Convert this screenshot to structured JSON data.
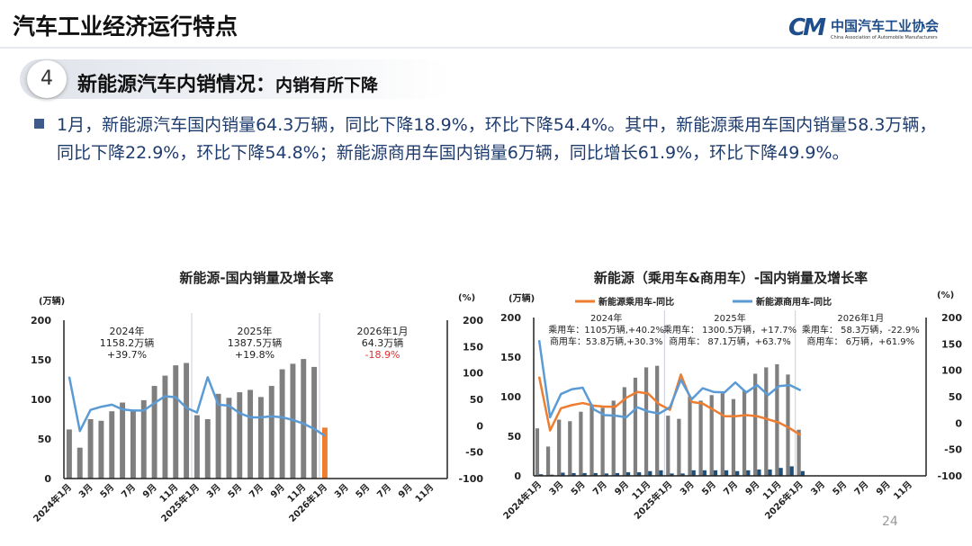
{
  "header": {
    "title": "汽车工业经济运行特点",
    "logo_mark": "CM",
    "logo_cn": "中国汽车工业协会",
    "logo_en": "China Association of Automobile Manufacturers"
  },
  "section": {
    "number": "4",
    "heading": "新能源汽车内销情况：",
    "subheading": "内销有所下降"
  },
  "bullet": "1月，新能源汽车国内销量64.3万辆，同比下降18.9%，环比下降54.4%。其中，新能源乘用车国内销量58.3万辆，同比下降22.9%，环比下降54.8%；新能源商用车国内销量6万辆，同比增长61.9%，环比下降49.9%。",
  "page_number": "24",
  "colors": {
    "bar": "#7f7f7f",
    "bar_highlight": "#ed7d31",
    "line_blue": "#5b9bd5",
    "line_orange": "#ed7d31",
    "commercial_bar": "#1f4e79",
    "negative": "#e03030"
  },
  "chart_data": [
    {
      "type": "bar+line",
      "title": "新能源-国内销量及增长率",
      "ylabel_left": "(万辆)",
      "ylabel_right": "(%)",
      "ylim_left": [
        0,
        200
      ],
      "ylim_right": [
        -100,
        200
      ],
      "yticks_left": [
        "0",
        "50",
        "100",
        "150",
        "200"
      ],
      "yticks_right": [
        "-100",
        "-50",
        "0",
        "50",
        "100",
        "150",
        "200"
      ],
      "xticks": [
        "2024年1月",
        "3月",
        "5月",
        "7月",
        "9月",
        "11月",
        "2025年1月",
        "3月",
        "5月",
        "7月",
        "9月",
        "11月",
        "2026年1月",
        "3月",
        "5月",
        "7月",
        "9月",
        "11月"
      ],
      "bar_series": [
        {
          "values": [
            62,
            39,
            75,
            73,
            85,
            96,
            87,
            99,
            117,
            130,
            143,
            146,
            80,
            75,
            107,
            102,
            109,
            112,
            103,
            117,
            138,
            145,
            151,
            141,
            64.3
          ],
          "highlight_last": true
        }
      ],
      "line_series": [
        {
          "color": "#5b9bd5",
          "values": [
            93,
            -10,
            30,
            36,
            40,
            31,
            29,
            29,
            43,
            56,
            54,
            34,
            25,
            92,
            40,
            38,
            24,
            16,
            16,
            18,
            16,
            11,
            4,
            -6,
            -18.9
          ]
        }
      ],
      "annotations": [
        {
          "lines": [
            "2024年",
            "1158.2万辆",
            "+39.7%"
          ]
        },
        {
          "lines": [
            "2025年",
            "1387.5万辆",
            "+19.8%"
          ]
        },
        {
          "lines": [
            "2026年1月",
            "64.3万辆",
            "-18.9%"
          ],
          "negative_last": true
        }
      ]
    },
    {
      "type": "bar+line",
      "title": "新能源（乘用车&商用车）-国内销量及增长率",
      "ylabel_left": "(万辆)",
      "ylabel_right": "(%)",
      "ylim_left": [
        0,
        200
      ],
      "ylim_right": [
        -100,
        200
      ],
      "yticks_left": [
        "0",
        "50",
        "100",
        "150",
        "200"
      ],
      "yticks_right": [
        "-100",
        "-50",
        "0",
        "50",
        "100",
        "150",
        "200"
      ],
      "xticks": [
        "2024年1月",
        "3月",
        "5月",
        "7月",
        "9月",
        "11月",
        "2025年1月",
        "3月",
        "5月",
        "7月",
        "9月",
        "11月",
        "2026年1月",
        "3月",
        "5月",
        "7月",
        "9月",
        "11月"
      ],
      "legend": [
        "新能源乘用车-同比",
        "新能源商用车-同比"
      ],
      "bar_series": [
        {
          "values": [
            60,
            37,
            71,
            69,
            81,
            90,
            86,
            95,
            112,
            124,
            137,
            139,
            76,
            72,
            100,
            95,
            102,
            104,
            97,
            108,
            129,
            137,
            141,
            128,
            58.3
          ]
        },
        {
          "values": [
            2,
            1.5,
            4,
            3.5,
            3.5,
            3.5,
            3,
            3.5,
            4.5,
            4.5,
            6,
            7,
            3,
            3,
            7,
            7,
            7,
            7,
            6,
            7,
            8,
            8,
            10,
            12,
            6
          ]
        }
      ],
      "line_series": [
        {
          "name": "新能源乘用车-同比",
          "color": "#ed7d31",
          "values": [
            88,
            -14,
            28,
            34,
            38,
            33,
            31,
            31,
            48,
            59,
            56,
            36,
            25,
            92,
            40,
            37,
            25,
            13,
            13,
            15,
            13,
            7,
            1,
            -10,
            -22.9
          ]
        },
        {
          "name": "新能源商用车-同比",
          "color": "#5b9bd5",
          "values": [
            157,
            11,
            55,
            64,
            67,
            26,
            15,
            14,
            11,
            30,
            22,
            18,
            30,
            82,
            45,
            66,
            59,
            58,
            77,
            58,
            72,
            53,
            70,
            72,
            61.9
          ]
        }
      ],
      "annotations": [
        {
          "lines": [
            "2024年",
            "乘用车：1105万辆,+40.2%",
            "商用车：53.8万辆,+30.3%"
          ]
        },
        {
          "lines": [
            "2025年",
            "乘用车：  1300.5万辆，+17.7%",
            "商用车：  87.1万辆，+63.7%"
          ]
        },
        {
          "lines": [
            "2026年1月",
            "乘用车：  58.3万辆，-22.9%",
            "商用车：  6万辆，+61.9%"
          ]
        }
      ]
    }
  ]
}
